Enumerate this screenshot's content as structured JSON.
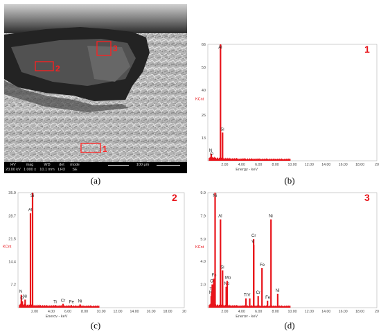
{
  "captions": [
    "(a)",
    "(b)",
    "(c)",
    "(d)"
  ],
  "sem": {
    "headers": [
      "HV",
      "mag",
      "WD",
      "det",
      "mode"
    ],
    "values": [
      "20.00 kV",
      "1 000 x",
      "10.1 mm",
      "LFD",
      "SE"
    ],
    "scale_label": "100 μm",
    "regions": [
      "1",
      "2",
      "3"
    ]
  },
  "accent_color": "#e8141b",
  "chart_data": [
    {
      "type": "bar",
      "panel": "b",
      "spectrum_label": "1",
      "ylabel": "KCnt",
      "xlabel": "Energy - keV",
      "xlim": [
        0,
        20
      ],
      "ylim": [
        0,
        66
      ],
      "yticks": [
        "66",
        "53",
        "40",
        "26",
        "13"
      ],
      "ytick_values": [
        66,
        53,
        40,
        26,
        13
      ],
      "xticks": [
        "2.00",
        "4.00",
        "6.00",
        "8.00",
        "10.00",
        "12.00",
        "14.00",
        "16.00",
        "18.00",
        "20"
      ],
      "peaks": [
        {
          "label": "N",
          "x": 0.39,
          "y": 4
        },
        {
          "label": "O",
          "x": 0.52,
          "y": 2
        },
        {
          "label": "Al",
          "x": 1.49,
          "y": 66
        },
        {
          "label": "Si",
          "x": 1.74,
          "y": 16
        }
      ]
    },
    {
      "type": "bar",
      "panel": "c",
      "spectrum_label": "2",
      "ylabel": "KCnt",
      "xlabel": "Energy - keV",
      "xlim": [
        0,
        20
      ],
      "ylim": [
        0,
        35.9
      ],
      "yticks": [
        "35.9",
        "28.7",
        "21.5",
        "14.4",
        "7.2"
      ],
      "ytick_values": [
        35.9,
        28.7,
        21.5,
        14.4,
        7.2
      ],
      "xticks": [
        "2.00",
        "4.00",
        "6.00",
        "8.00",
        "10.00",
        "12.00",
        "14.00",
        "16.00",
        "18.00",
        "20"
      ],
      "peaks": [
        {
          "label": "N",
          "x": 0.39,
          "y": 4
        },
        {
          "label": "O",
          "x": 0.52,
          "y": 2
        },
        {
          "label": "Ni",
          "x": 0.85,
          "y": 2.5
        },
        {
          "label": "Al",
          "x": 1.49,
          "y": 29.5
        },
        {
          "label": "Si",
          "x": 1.74,
          "y": 35.9
        },
        {
          "label": "Ti",
          "x": 4.51,
          "y": 0.8
        },
        {
          "label": "Cr",
          "x": 5.41,
          "y": 1.2
        },
        {
          "label": "Fe",
          "x": 6.4,
          "y": 0.8
        },
        {
          "label": "Ni",
          "x": 7.47,
          "y": 1.0
        }
      ]
    },
    {
      "type": "bar",
      "panel": "d",
      "spectrum_label": "3",
      "ylabel": "KCnt",
      "xlabel": "Energy - keV",
      "xlim": [
        0,
        20
      ],
      "ylim": [
        0,
        9.9
      ],
      "yticks": [
        "9.9",
        "7.9",
        "5.9",
        "4.0",
        "2.0"
      ],
      "ytick_values": [
        9.9,
        7.9,
        5.9,
        4.0,
        2.0
      ],
      "xticks": [
        "2.00",
        "4.00",
        "6.00",
        "8.00",
        "10.00",
        "12.00",
        "14.00",
        "16.00",
        "18.00",
        "20"
      ],
      "peaks": [
        {
          "label": "N",
          "x": 0.39,
          "y": 1.0
        },
        {
          "label": "Ti",
          "x": 0.45,
          "y": 1.3
        },
        {
          "label": "O",
          "x": 0.52,
          "y": 2.0
        },
        {
          "label": "Fe",
          "x": 0.7,
          "y": 2.5
        },
        {
          "label": "Ni",
          "x": 0.85,
          "y": 9.9
        },
        {
          "label": "Al",
          "x": 1.49,
          "y": 7.6
        },
        {
          "label": "Si",
          "x": 1.74,
          "y": 3.2
        },
        {
          "label": "Nb",
          "x": 2.17,
          "y": 1.8
        },
        {
          "label": "Mo",
          "x": 2.29,
          "y": 2.3
        },
        {
          "label": "Ti",
          "x": 4.51,
          "y": 0.8
        },
        {
          "label": "V",
          "x": 4.95,
          "y": 0.8
        },
        {
          "label": "Cr",
          "x": 5.41,
          "y": 5.9
        },
        {
          "label": "V",
          "x": 5.43,
          "y": 5.4
        },
        {
          "label": "Cr",
          "x": 5.95,
          "y": 1.0
        },
        {
          "label": "Fe",
          "x": 6.4,
          "y": 3.4
        },
        {
          "label": "Fe",
          "x": 7.06,
          "y": 0.6
        },
        {
          "label": "Ni",
          "x": 7.47,
          "y": 7.6
        },
        {
          "label": "Ni",
          "x": 8.26,
          "y": 1.2
        }
      ]
    }
  ]
}
